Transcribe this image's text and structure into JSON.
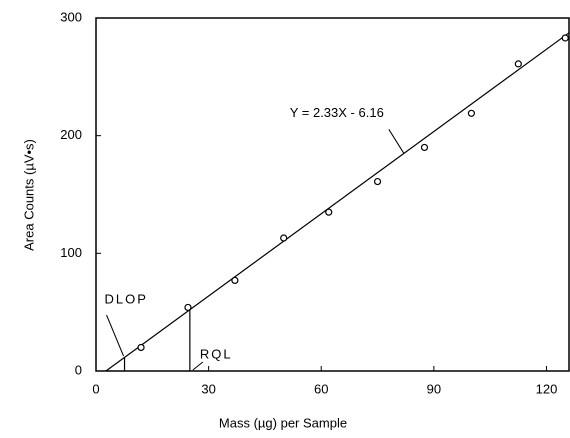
{
  "chart_data": {
    "type": "scatter",
    "xlabel": "Mass (µg) per Sample",
    "ylabel": "Area Counts (µV•s)",
    "x": [
      12,
      24.5,
      37,
      50,
      62,
      75,
      87.5,
      100,
      112.5,
      125
    ],
    "values": [
      20,
      54,
      77,
      113,
      135,
      161,
      190,
      219,
      261,
      283
    ],
    "color": "#000000",
    "xlim": [
      0,
      126
    ],
    "ylim": [
      0,
      300
    ],
    "xticks": [
      0,
      30,
      60,
      90,
      120
    ],
    "yticks": [
      0,
      100,
      200,
      300
    ],
    "fit_line": {
      "x": [
        2.64,
        126
      ],
      "values": [
        0,
        287.4
      ]
    },
    "annotations": [
      {
        "text": "Y = 2.33X - 6.16",
        "x": 82,
        "y": 185
      },
      {
        "text": "DLOP",
        "x": 7.6,
        "y": 11.5
      },
      {
        "text": "RQL",
        "x": 25,
        "y": 52
      }
    ]
  }
}
